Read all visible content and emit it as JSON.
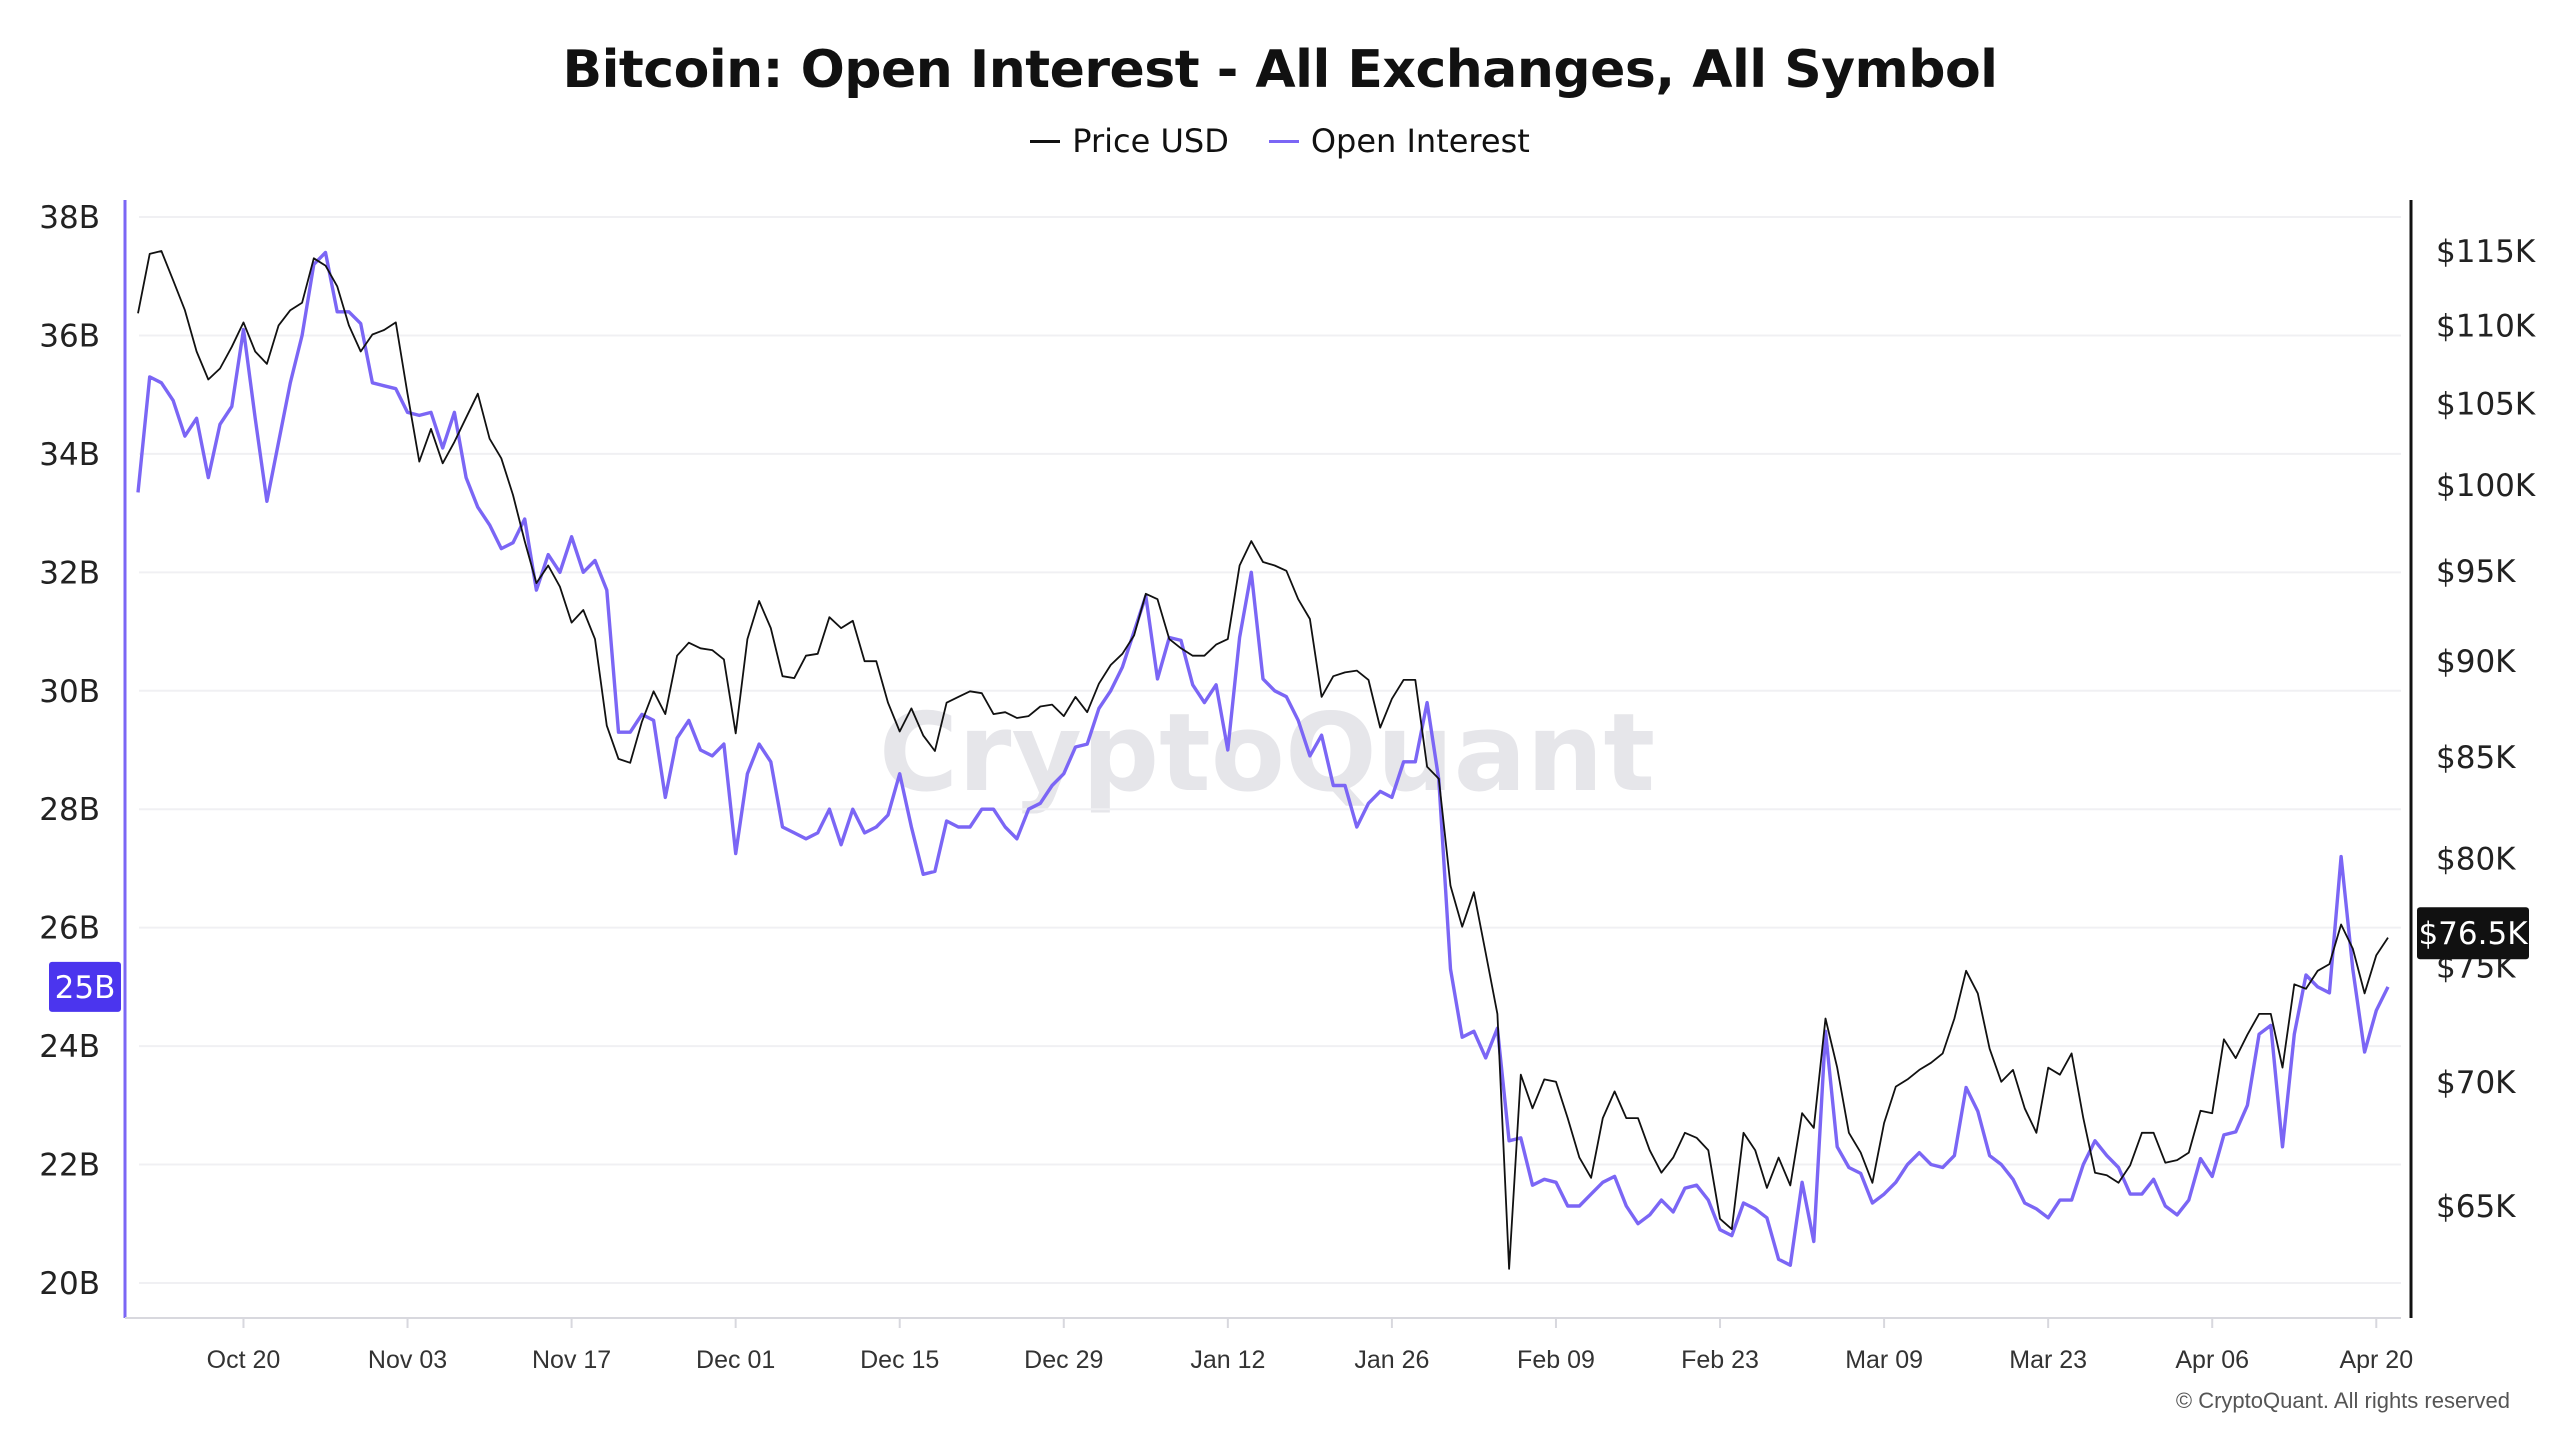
{
  "chart_data": {
    "type": "line",
    "title": "Bitcoin: Open Interest - All Exchanges, All Symbol",
    "legend": [
      {
        "name": "Price USD",
        "color": "#111111"
      },
      {
        "name": "Open Interest",
        "color": "#7b66f5"
      }
    ],
    "legend_position": "top-center",
    "grid": true,
    "watermark": "CryptoQuant",
    "copyright": "© CryptoQuant. All rights reserved",
    "x_ticks": [
      {
        "date": "2025-10-20",
        "label": "Oct 20"
      },
      {
        "date": "2025-11-03",
        "label": "Nov 03"
      },
      {
        "date": "2025-11-17",
        "label": "Nov 17"
      },
      {
        "date": "2025-12-01",
        "label": "Dec 01"
      },
      {
        "date": "2025-12-15",
        "label": "Dec 15"
      },
      {
        "date": "2025-12-29",
        "label": "Dec 29"
      },
      {
        "date": "2026-01-12",
        "label": "Jan 12"
      },
      {
        "date": "2026-01-26",
        "label": "Jan 26"
      },
      {
        "date": "2026-02-09",
        "label": "Feb 09"
      },
      {
        "date": "2026-02-23",
        "label": "Feb 23"
      },
      {
        "date": "2026-03-09",
        "label": "Mar 09"
      },
      {
        "date": "2026-03-23",
        "label": "Mar 23"
      },
      {
        "date": "2026-04-06",
        "label": "Apr 06"
      },
      {
        "date": "2026-04-20",
        "label": "Apr 20"
      }
    ],
    "y_left": {
      "unit": "B",
      "ylim": [
        20,
        38
      ],
      "ticks": [
        38,
        36,
        34,
        32,
        30,
        28,
        26,
        24,
        22,
        20
      ],
      "tick_labels": [
        "38B",
        "36B",
        "34B",
        "32B",
        "30B",
        "28B",
        "26B",
        "24B",
        "22B",
        "20B"
      ],
      "current_label": "25B",
      "current_value": 25
    },
    "y_right": {
      "scale": "log",
      "ylim": [
        62,
        117
      ],
      "ticks": [
        115,
        110,
        105,
        100,
        95,
        90,
        85,
        80,
        75,
        70,
        65
      ],
      "tick_labels": [
        "$115K",
        "$110K",
        "$105K",
        "$100K",
        "$95K",
        "$90K",
        "$85K",
        "$80K",
        "$75K",
        "$70K",
        "$65K"
      ],
      "current_label": "$76.5K",
      "current_value": 76.5
    },
    "x_range": [
      "2025-10-11",
      "2026-04-21"
    ],
    "series": [
      {
        "name": "Open Interest",
        "axis": "left",
        "unit": "billion USD",
        "values": [
          33.35,
          35.3,
          35.2,
          34.9,
          34.3,
          34.6,
          33.6,
          34.5,
          34.8,
          36.1,
          34.6,
          33.2,
          34.2,
          35.2,
          36.0,
          37.2,
          37.4,
          36.4,
          36.4,
          36.2,
          35.2,
          35.15,
          35.1,
          34.7,
          34.65,
          34.7,
          34.1,
          34.7,
          33.6,
          33.1,
          32.8,
          32.4,
          32.5,
          32.9,
          31.7,
          32.3,
          32.0,
          32.6,
          32.0,
          32.2,
          31.7,
          29.3,
          29.3,
          29.6,
          29.5,
          28.2,
          29.2,
          29.5,
          29.0,
          28.9,
          29.1,
          27.25,
          28.6,
          29.1,
          28.8,
          27.7,
          27.6,
          27.5,
          27.6,
          28.0,
          27.4,
          28.0,
          27.6,
          27.7,
          27.9,
          28.6,
          27.7,
          26.9,
          26.95,
          27.8,
          27.7,
          27.7,
          28.0,
          28.0,
          27.7,
          27.5,
          28.0,
          28.1,
          28.4,
          28.6,
          29.05,
          29.1,
          29.7,
          30.0,
          30.4,
          31.0,
          31.6,
          30.2,
          30.9,
          30.85,
          30.1,
          29.8,
          30.1,
          29.0,
          30.9,
          32.0,
          30.2,
          30.0,
          29.9,
          29.5,
          28.9,
          29.25,
          28.4,
          28.4,
          27.7,
          28.1,
          28.3,
          28.2,
          28.8,
          28.8,
          29.8,
          28.5,
          25.3,
          24.15,
          24.25,
          23.8,
          24.3,
          22.4,
          22.45,
          21.65,
          21.75,
          21.7,
          21.3,
          21.3,
          21.5,
          21.7,
          21.8,
          21.3,
          21.0,
          21.15,
          21.4,
          21.2,
          21.6,
          21.65,
          21.4,
          20.9,
          20.8,
          21.35,
          21.25,
          21.1,
          20.4,
          20.3,
          21.7,
          20.7,
          24.25,
          22.3,
          21.95,
          21.85,
          21.35,
          21.5,
          21.7,
          22.0,
          22.2,
          22.0,
          21.95,
          22.15,
          23.3,
          22.9,
          22.15,
          22.0,
          21.75,
          21.35,
          21.25,
          21.1,
          21.4,
          21.4,
          22.0,
          22.4,
          22.15,
          21.95,
          21.5,
          21.5,
          21.75,
          21.3,
          21.15,
          21.4,
          22.1,
          21.8,
          22.5,
          22.55,
          23.0,
          24.2,
          24.35,
          22.3,
          24.2,
          25.2,
          25.0,
          24.9,
          27.2,
          25.3,
          23.9,
          24.6,
          25.0
        ]
      },
      {
        "name": "Price USD",
        "axis": "right",
        "unit": "thousand USD",
        "values": [
          110.8,
          114.8,
          115,
          113,
          111,
          108.3,
          106.5,
          107.2,
          108.6,
          110.2,
          108.3,
          107.5,
          110,
          111,
          111.5,
          114.5,
          114,
          112.6,
          110,
          108.3,
          109.4,
          109.7,
          110.2,
          105.6,
          101.4,
          103.4,
          101.3,
          102.6,
          104.1,
          105.6,
          102.8,
          101.6,
          99.4,
          96.7,
          94.3,
          95.3,
          94.1,
          92.1,
          92.8,
          91.2,
          86.6,
          84.9,
          84.7,
          86.8,
          88.4,
          87.2,
          90.3,
          91,
          90.7,
          90.6,
          90.1,
          86.2,
          91.2,
          93.3,
          91.8,
          89.2,
          89.1,
          90.3,
          90.4,
          92.4,
          91.8,
          92.2,
          90,
          90,
          87.8,
          86.3,
          87.5,
          86.1,
          85.3,
          87.8,
          88.1,
          88.4,
          88.3,
          87.2,
          87.3,
          87,
          87.1,
          87.6,
          87.7,
          87.1,
          88.1,
          87.3,
          88.8,
          89.8,
          90.4,
          91.4,
          93.7,
          93.4,
          91.2,
          90.7,
          90.3,
          90.3,
          90.9,
          91.2,
          95.3,
          96.7,
          95.5,
          95.3,
          95,
          93.4,
          92.3,
          88.1,
          89.2,
          89.4,
          89.5,
          89,
          86.5,
          88,
          89,
          89,
          84.5,
          83.9,
          78.7,
          76.8,
          78.4,
          75.6,
          72.9,
          62.6,
          70.3,
          68.9,
          70.1,
          70,
          68.5,
          66.9,
          66.1,
          68.5,
          69.6,
          68.5,
          68.5,
          67.2,
          66.3,
          66.9,
          67.9,
          67.7,
          67.2,
          64.5,
          64.1,
          67.9,
          67.2,
          65.7,
          66.9,
          65.8,
          68.7,
          68.1,
          72.7,
          70.6,
          67.9,
          67.1,
          65.9,
          68.3,
          69.8,
          70.1,
          70.5,
          70.8,
          71.2,
          72.7,
          74.8,
          73.8,
          71.4,
          70,
          70.5,
          68.9,
          67.9,
          70.6,
          70.3,
          71.2,
          68.5,
          66.3,
          66.2,
          65.9,
          66.6,
          67.9,
          67.9,
          66.7,
          66.8,
          67.1,
          68.8,
          68.7,
          71.8,
          71,
          72,
          72.9,
          72.9,
          70.6,
          74.2,
          74,
          74.8,
          75.1,
          76.9,
          75.8,
          73.8,
          75.5,
          76.3
        ]
      }
    ]
  }
}
